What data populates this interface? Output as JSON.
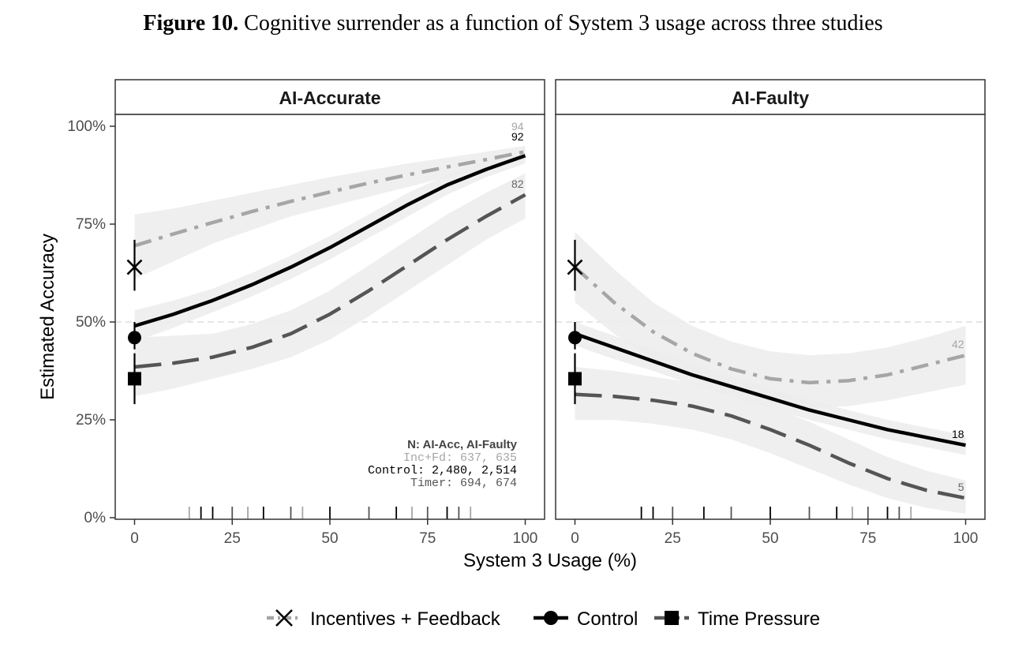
{
  "figure": {
    "label": "Figure 10.",
    "title": "Cognitive surrender as a function of System 3 usage across three studies"
  },
  "chart_data": {
    "type": "line",
    "title": "Cognitive surrender as a function of System 3 usage across three studies",
    "xlabel": "System 3 Usage (%)",
    "ylabel": "Estimated Accuracy",
    "xlim": [
      0,
      100
    ],
    "ylim": [
      0,
      100
    ],
    "x_ticks": [
      0,
      25,
      50,
      75,
      100
    ],
    "x_tick_labels": [
      "0",
      "25",
      "50",
      "75",
      "100"
    ],
    "y_ticks": [
      0,
      25,
      50,
      75,
      100
    ],
    "y_tick_labels": [
      "0%",
      "25%",
      "50%",
      "75%",
      "100%"
    ],
    "reference_line": 50,
    "colors": {
      "incentives": "#a6a6a6",
      "control": "#000000",
      "timer": "#555555",
      "ribbon": "#ececec",
      "refline": "#dddddd"
    },
    "legend": {
      "placement": "bottom",
      "entries": [
        {
          "series": "incentives",
          "label": "Incentives + Feedback",
          "marker": "x",
          "dash": "dashdot"
        },
        {
          "series": "control",
          "label": "Control",
          "marker": "circle",
          "dash": "solid"
        },
        {
          "series": "timer",
          "label": "Time Pressure",
          "marker": "square",
          "dash": "longdash"
        }
      ]
    },
    "panels": [
      {
        "id": "accurate",
        "strip_label": "AI-Accurate",
        "series": [
          {
            "key": "incentives",
            "name": "Incentives + Feedback",
            "x": [
              0,
              10,
              20,
              30,
              40,
              50,
              60,
              70,
              80,
              90,
              100
            ],
            "y": [
              69.5,
              72.5,
              75.4,
              78.2,
              80.8,
              83.2,
              85.5,
              87.6,
              89.6,
              91.5,
              93.5
            ],
            "lower": [
              61,
              65.5,
              70,
              73.5,
              77,
              79.5,
              82,
              84.5,
              87,
              89,
              91.5
            ],
            "upper": [
              77.5,
              79,
              81,
              83,
              85,
              87,
              88.8,
              90.5,
              92,
              93.5,
              95
            ],
            "end_label": "94",
            "point": {
              "estimate": 64,
              "ci": [
                58,
                71
              ]
            }
          },
          {
            "key": "control",
            "name": "Control",
            "x": [
              0,
              10,
              20,
              30,
              40,
              50,
              60,
              70,
              80,
              90,
              100
            ],
            "y": [
              49,
              52,
              55.5,
              59.5,
              64,
              69,
              74.5,
              80,
              85,
              89,
              92.5
            ],
            "lower": [
              45,
              48.5,
              52.5,
              56.5,
              61,
              66,
              71.5,
              77,
              82.5,
              87,
              90.5
            ],
            "upper": [
              53,
              55.5,
              58.5,
              62.5,
              67,
              72,
              77.5,
              83,
              87.5,
              91,
              94
            ],
            "end_label": "92",
            "point": {
              "estimate": 46,
              "ci": [
                43,
                50
              ]
            }
          },
          {
            "key": "timer",
            "name": "Time Pressure",
            "x": [
              0,
              10,
              20,
              30,
              40,
              50,
              60,
              70,
              80,
              90,
              100
            ],
            "y": [
              38.5,
              39.5,
              41,
              43.5,
              47,
              52,
              58,
              64.5,
              71,
              77,
              82.5
            ],
            "lower": [
              31,
              33,
              35.5,
              38,
              41,
              45.5,
              51.5,
              58,
              64.5,
              71,
              76.5
            ],
            "upper": [
              46,
              46.5,
              47,
              49.5,
              53,
              58,
              64.5,
              71,
              77.5,
              83,
              88
            ],
            "end_label": "82",
            "point": {
              "estimate": 35.5,
              "ci": [
                29,
                42
              ]
            }
          }
        ],
        "rug": [
          {
            "x": 14,
            "series": "incentives"
          },
          {
            "x": 17,
            "series": "control"
          },
          {
            "x": 20,
            "series": "control"
          },
          {
            "x": 25,
            "series": "timer"
          },
          {
            "x": 29,
            "series": "incentives"
          },
          {
            "x": 33,
            "series": "control"
          },
          {
            "x": 40,
            "series": "timer"
          },
          {
            "x": 43,
            "series": "incentives"
          },
          {
            "x": 50,
            "series": "control"
          },
          {
            "x": 60,
            "series": "timer"
          },
          {
            "x": 67,
            "series": "control"
          },
          {
            "x": 71,
            "series": "incentives"
          },
          {
            "x": 75,
            "series": "timer"
          },
          {
            "x": 80,
            "series": "control"
          },
          {
            "x": 83,
            "series": "timer"
          },
          {
            "x": 86,
            "series": "incentives"
          }
        ],
        "n_table": {
          "header_label": "N:",
          "header_cols": "AI-Acc, AI-Faulty",
          "rows": [
            {
              "series": "incentives",
              "label": "Inc+Fd:",
              "a": "637,",
              "b": "635"
            },
            {
              "series": "control",
              "label": "Control:",
              "a": "2,480,",
              "b": "2,514"
            },
            {
              "series": "timer",
              "label": "Timer:",
              "a": "694,",
              "b": "674"
            }
          ]
        }
      },
      {
        "id": "faulty",
        "strip_label": "AI-Faulty",
        "series": [
          {
            "key": "incentives",
            "name": "Incentives + Feedback",
            "x": [
              0,
              10,
              20,
              30,
              40,
              50,
              60,
              70,
              80,
              90,
              100
            ],
            "y": [
              64,
              55,
              47.5,
              42,
              38,
              35.5,
              34.5,
              35,
              36.5,
              39,
              41.5
            ],
            "lower": [
              55,
              47,
              40.5,
              35.5,
              31.5,
              29,
              28,
              28.5,
              30,
              32,
              34
            ],
            "upper": [
              73,
              63.5,
              55,
              49,
              45,
              42.5,
              41.5,
              42,
              43.5,
              46,
              49
            ],
            "end_label": "42",
            "point": {
              "estimate": 64,
              "ci": [
                58,
                71
              ]
            }
          },
          {
            "key": "control",
            "name": "Control",
            "x": [
              0,
              10,
              20,
              30,
              40,
              50,
              60,
              70,
              80,
              90,
              100
            ],
            "y": [
              47,
              43.5,
              40,
              36.5,
              33.5,
              30.5,
              27.5,
              25,
              22.5,
              20.5,
              18.5
            ],
            "lower": [
              44,
              40.5,
              37.5,
              34,
              31,
              28,
              25,
              22.5,
              20,
              18,
              16
            ],
            "upper": [
              50,
              46.5,
              43,
              39.5,
              36,
              33,
              30,
              27.5,
              25,
              23,
              21
            ],
            "end_label": "18",
            "point": {
              "estimate": 46,
              "ci": [
                43,
                50
              ]
            }
          },
          {
            "key": "timer",
            "name": "Time Pressure",
            "x": [
              0,
              10,
              20,
              30,
              40,
              50,
              60,
              70,
              80,
              90,
              100
            ],
            "y": [
              31.5,
              31,
              30,
              28.5,
              26,
              22.5,
              18.5,
              14,
              10,
              7,
              5
            ],
            "lower": [
              25,
              25,
              24,
              22.5,
              20,
              16.5,
              12.5,
              8.5,
              5,
              2.5,
              1
            ],
            "upper": [
              38.5,
              37.5,
              36,
              34.5,
              32,
              28.5,
              24.5,
              20,
              15.5,
              12,
              9.5
            ],
            "end_label": "5",
            "point": {
              "estimate": 35.5,
              "ci": [
                29,
                42
              ]
            }
          }
        ],
        "rug": [
          {
            "x": 17,
            "series": "control"
          },
          {
            "x": 20,
            "series": "control"
          },
          {
            "x": 25,
            "series": "timer"
          },
          {
            "x": 33,
            "series": "control"
          },
          {
            "x": 40,
            "series": "timer"
          },
          {
            "x": 50,
            "series": "control"
          },
          {
            "x": 60,
            "series": "timer"
          },
          {
            "x": 67,
            "series": "control"
          },
          {
            "x": 71,
            "series": "incentives"
          },
          {
            "x": 75,
            "series": "timer"
          },
          {
            "x": 80,
            "series": "control"
          },
          {
            "x": 83,
            "series": "timer"
          },
          {
            "x": 86,
            "series": "incentives"
          }
        ]
      }
    ]
  }
}
